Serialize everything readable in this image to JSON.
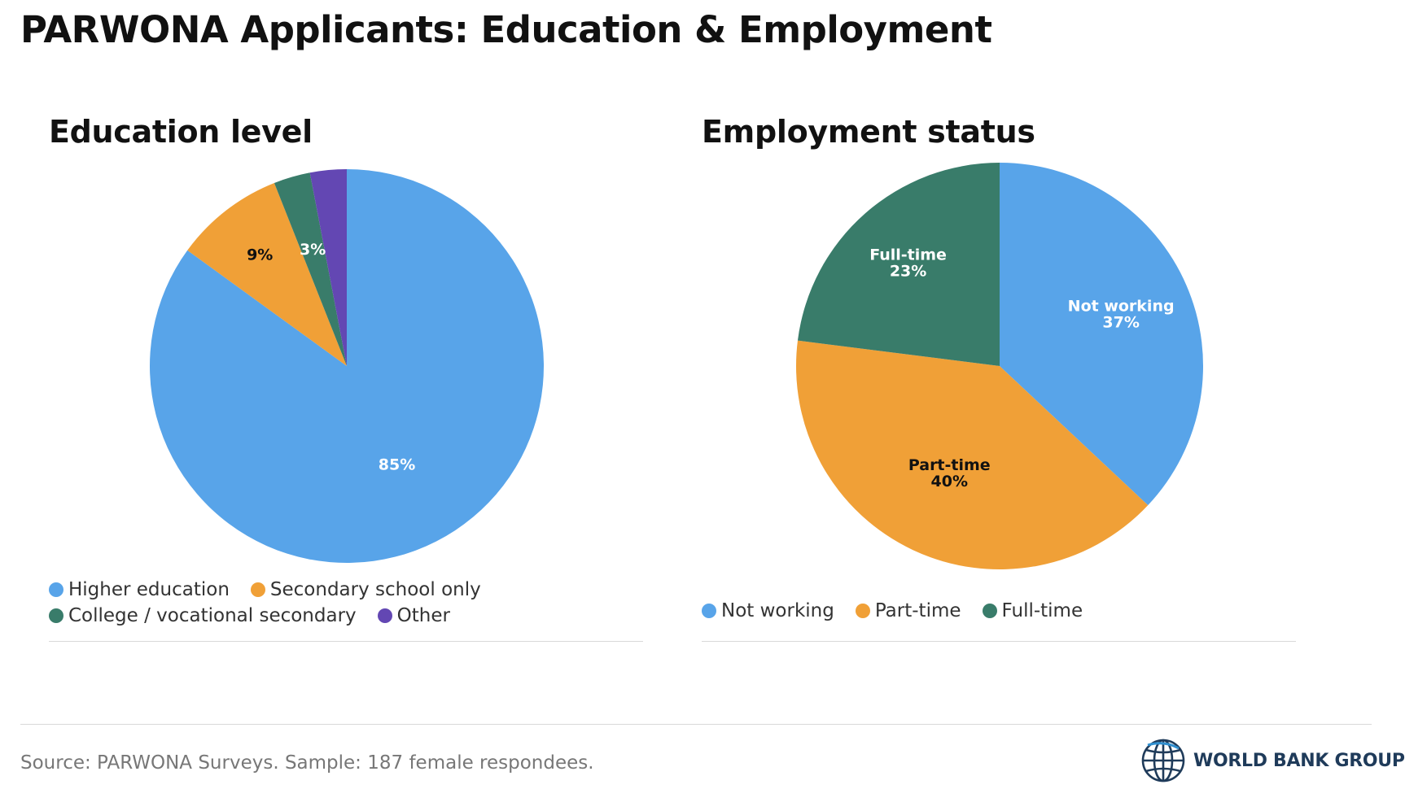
{
  "title": "PARWONA Applicants: Education & Employment",
  "chart_data": [
    {
      "type": "pie",
      "title": "Education level",
      "categories": [
        "Higher education",
        "Secondary school only",
        "College / vocational secondary",
        "Other"
      ],
      "values": [
        85,
        9,
        3,
        3
      ],
      "data_labels": [
        "85%",
        "9%",
        "3%",
        ""
      ],
      "colors": [
        "#58a4e9",
        "#f0a037",
        "#397c6a",
        "#6347b3"
      ],
      "label_colors": [
        "#ffffff",
        "#111111",
        "#ffffff",
        "#ffffff"
      ],
      "legend_position": "bottom-left"
    },
    {
      "type": "pie",
      "title": "Employment status",
      "categories": [
        "Not working",
        "Part-time",
        "Full-time"
      ],
      "values": [
        37,
        40,
        23
      ],
      "data_labels": [
        "Not working\n37%",
        "Part-time\n40%",
        "Full-time\n23%"
      ],
      "colors": [
        "#58a4e9",
        "#f0a037",
        "#397c6a"
      ],
      "label_colors": [
        "#ffffff",
        "#111111",
        "#ffffff"
      ],
      "legend_position": "bottom-left"
    }
  ],
  "footer": {
    "source": "Source: PARWONA Surveys. Sample: 187 female respondees.",
    "logo_text": "WORLD BANK GROUP",
    "logo_icon": "globe-icon",
    "logo_color": "#1f3b5a"
  }
}
